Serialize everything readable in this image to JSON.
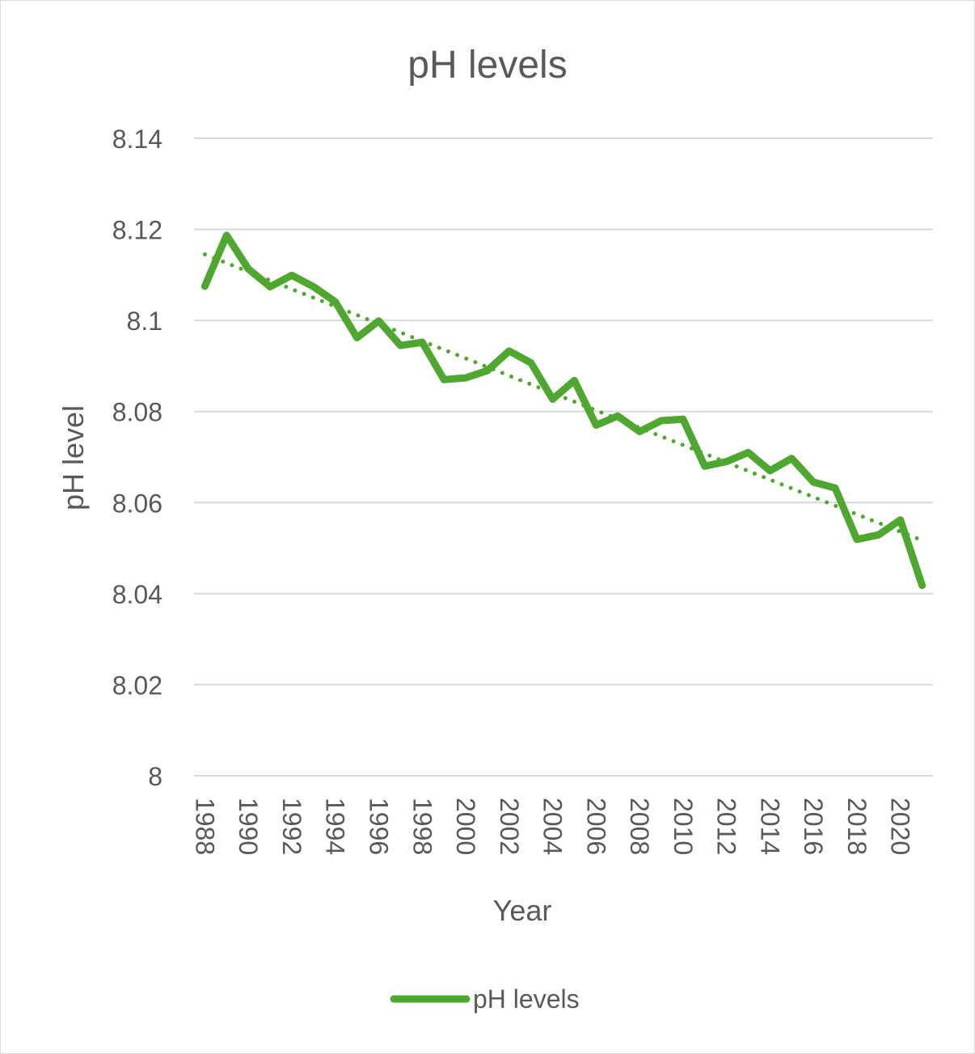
{
  "chart_data": {
    "type": "line",
    "title": "pH levels",
    "xlabel": "Year",
    "ylabel": "pH level",
    "x": [
      1988,
      1989,
      1990,
      1991,
      1992,
      1993,
      1994,
      1995,
      1996,
      1997,
      1998,
      1999,
      2000,
      2001,
      2002,
      2003,
      2004,
      2005,
      2006,
      2007,
      2008,
      2009,
      2010,
      2011,
      2012,
      2013,
      2014,
      2015,
      2016,
      2017,
      2018,
      2019,
      2020,
      2021
    ],
    "x_tick_labels": [
      "1988",
      "1990",
      "1992",
      "1994",
      "1996",
      "1998",
      "2000",
      "2002",
      "2004",
      "2006",
      "2008",
      "2010",
      "2012",
      "2014",
      "2016",
      "2018",
      "2020"
    ],
    "ylim": [
      8,
      8.14
    ],
    "y_ticks": [
      8,
      8.02,
      8.04,
      8.06,
      8.08,
      8.1,
      8.12,
      8.14
    ],
    "y_tick_labels": [
      "8",
      "8.02",
      "8.04",
      "8.06",
      "8.08",
      "8.1",
      "8.12",
      "8.14"
    ],
    "series": [
      {
        "name": "pH levels",
        "color": "#4ea72e",
        "values": [
          8.1075,
          8.1187,
          8.1113,
          8.1074,
          8.1099,
          8.1074,
          8.1041,
          8.0962,
          8.0999,
          8.0945,
          8.0952,
          8.087,
          8.0874,
          8.089,
          8.0933,
          8.0907,
          8.0827,
          8.0868,
          8.077,
          8.079,
          8.0756,
          8.078,
          8.0783,
          8.068,
          8.069,
          8.071,
          8.067,
          8.0697,
          8.0645,
          8.0632,
          8.0519,
          8.0529,
          8.0562,
          8.0418
        ]
      }
    ],
    "trendline": {
      "type": "linear",
      "style": "dotted",
      "color": "#4ea72e",
      "start": 8.1145,
      "end": 8.0517
    },
    "grid": true,
    "legend_position": "bottom"
  }
}
